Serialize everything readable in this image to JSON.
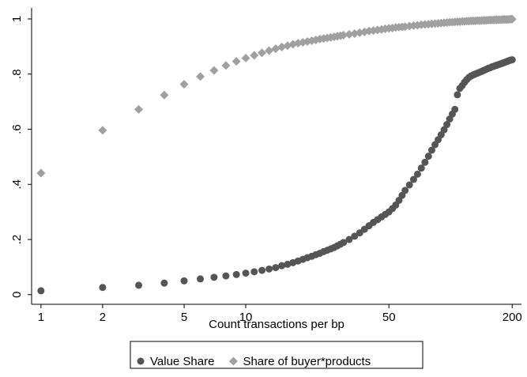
{
  "chart_data": {
    "type": "scatter",
    "x_label": "Count transactions per bp",
    "x": [
      1,
      2,
      3,
      4,
      5,
      6,
      7,
      8,
      9,
      10,
      11,
      12,
      13,
      14,
      15,
      16,
      17,
      18,
      19,
      20,
      21,
      22,
      23,
      24,
      25,
      26,
      27,
      28,
      29,
      30,
      32,
      34,
      36,
      38,
      40,
      42,
      44,
      46,
      48,
      50,
      52,
      54,
      56,
      58,
      60,
      63,
      66,
      69,
      72,
      75,
      78,
      81,
      84,
      87,
      90,
      93,
      96,
      99,
      102,
      105,
      108,
      111,
      114,
      117,
      120,
      123,
      126,
      129,
      132,
      135,
      138,
      141,
      144,
      147,
      150,
      153,
      156,
      159,
      162,
      165,
      168,
      171,
      174,
      177,
      180,
      183,
      186,
      189,
      192,
      195,
      198,
      200
    ],
    "series": [
      {
        "name": "Value Share",
        "color": "#555555",
        "marker": "circle",
        "values": [
          0.014,
          0.026,
          0.034,
          0.042,
          0.05,
          0.057,
          0.063,
          0.068,
          0.073,
          0.078,
          0.083,
          0.088,
          0.093,
          0.098,
          0.105,
          0.11,
          0.116,
          0.122,
          0.128,
          0.134,
          0.139,
          0.145,
          0.15,
          0.156,
          0.161,
          0.166,
          0.171,
          0.177,
          0.183,
          0.189,
          0.2,
          0.212,
          0.224,
          0.237,
          0.25,
          0.262,
          0.272,
          0.282,
          0.291,
          0.3,
          0.312,
          0.325,
          0.342,
          0.36,
          0.378,
          0.398,
          0.418,
          0.437,
          0.459,
          0.48,
          0.502,
          0.524,
          0.544,
          0.562,
          0.58,
          0.598,
          0.617,
          0.637,
          0.655,
          0.672,
          0.725,
          0.748,
          0.758,
          0.77,
          0.78,
          0.788,
          0.793,
          0.797,
          0.8,
          0.803,
          0.806,
          0.809,
          0.812,
          0.815,
          0.818,
          0.821,
          0.823,
          0.826,
          0.828,
          0.83,
          0.832,
          0.834,
          0.836,
          0.838,
          0.84,
          0.842,
          0.844,
          0.846,
          0.848,
          0.85,
          0.851,
          0.852
        ]
      },
      {
        "name": "Share of buyer*products",
        "color": "#a0a0a0",
        "marker": "diamond",
        "values": [
          0.441,
          0.596,
          0.672,
          0.724,
          0.763,
          0.791,
          0.813,
          0.831,
          0.846,
          0.858,
          0.868,
          0.877,
          0.885,
          0.892,
          0.898,
          0.903,
          0.908,
          0.912,
          0.915,
          0.918,
          0.921,
          0.924,
          0.927,
          0.929,
          0.931,
          0.933,
          0.935,
          0.937,
          0.939,
          0.941,
          0.944,
          0.947,
          0.95,
          0.953,
          0.956,
          0.958,
          0.96,
          0.962,
          0.964,
          0.966,
          0.967,
          0.969,
          0.97,
          0.971,
          0.972,
          0.974,
          0.976,
          0.977,
          0.979,
          0.98,
          0.981,
          0.982,
          0.983,
          0.984,
          0.985,
          0.986,
          0.987,
          0.988,
          0.988,
          0.989,
          0.99,
          0.99,
          0.991,
          0.991,
          0.992,
          0.992,
          0.993,
          0.993,
          0.993,
          0.994,
          0.994,
          0.994,
          0.995,
          0.995,
          0.995,
          0.996,
          0.996,
          0.996,
          0.996,
          0.997,
          0.997,
          0.997,
          0.997,
          0.997,
          0.998,
          0.998,
          0.998,
          0.998,
          0.998,
          0.999,
          0.999,
          0.999
        ]
      }
    ],
    "xlim": [
      0.9,
      222
    ],
    "xticks": [
      1,
      2,
      5,
      10,
      50,
      200
    ],
    "xscale": "log",
    "ylim": [
      -0.035,
      1.04
    ],
    "yticks": [
      0,
      {
        "value": 0.2,
        "label": ".2"
      },
      {
        "value": 0.4,
        "label": ".4"
      },
      {
        "value": 0.6,
        "label": ".6"
      },
      {
        "value": 0.8,
        "label": ".8"
      },
      1
    ],
    "grid": false,
    "legend": "bottom"
  }
}
